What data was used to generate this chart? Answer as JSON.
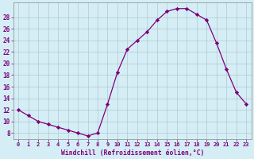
{
  "x": [
    0,
    1,
    2,
    3,
    4,
    5,
    6,
    7,
    8,
    9,
    10,
    11,
    12,
    13,
    14,
    15,
    16,
    17,
    18,
    19,
    20,
    21,
    22,
    23
  ],
  "y": [
    12,
    11,
    10,
    9.5,
    9,
    8.5,
    8,
    7.5,
    8.0,
    13.0,
    18.5,
    22.5,
    24.0,
    25.5,
    27.5,
    29.0,
    29.5,
    29.5,
    28.5,
    27.5,
    23.5,
    19.0,
    15.0,
    13.0
  ],
  "line_color": "#7b007b",
  "marker": "D",
  "marker_size": 2.2,
  "bg_color": "#d5eef5",
  "grid_color": "#b0c8d0",
  "xlabel": "Windchill (Refroidissement éolien,°C)",
  "xlabel_color": "#7b007b",
  "yticks": [
    8,
    10,
    12,
    14,
    16,
    18,
    20,
    22,
    24,
    26,
    28
  ],
  "ylim": [
    7.0,
    30.5
  ],
  "xlim": [
    -0.5,
    23.5
  ],
  "tick_color": "#7b007b"
}
